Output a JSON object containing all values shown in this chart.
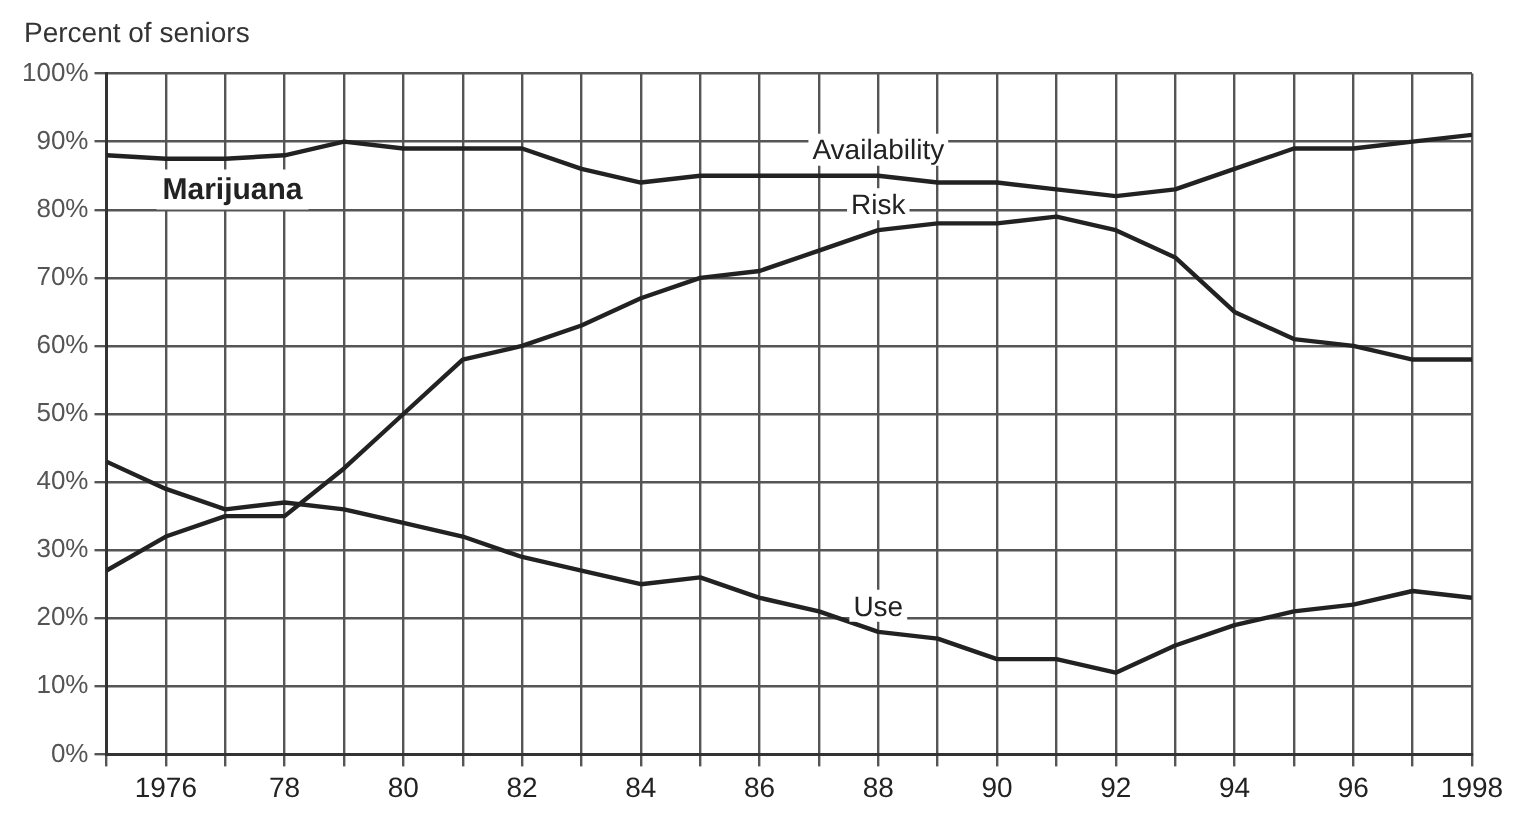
{
  "chart_data": {
    "type": "line",
    "ylabel": "Percent of seniors",
    "annotations": [
      "Marijuana"
    ],
    "x": [
      1975,
      1976,
      1977,
      1978,
      1979,
      1980,
      1981,
      1982,
      1983,
      1984,
      1985,
      1986,
      1987,
      1988,
      1989,
      1990,
      1991,
      1992,
      1993,
      1994,
      1995,
      1996,
      1997,
      1998
    ],
    "series": [
      {
        "name": "Availability",
        "color": "#222222",
        "values": [
          88,
          87.5,
          87.5,
          88,
          90,
          89,
          89,
          89,
          86,
          84,
          85,
          85,
          85,
          85,
          84,
          84,
          83,
          82,
          83,
          86,
          89,
          89,
          90,
          91
        ]
      },
      {
        "name": "Risk",
        "color": "#222222",
        "values": [
          27,
          32,
          35,
          35,
          42,
          50,
          58,
          60,
          63,
          67,
          70,
          71,
          74,
          77,
          78,
          78,
          79,
          77,
          73,
          65,
          61,
          60,
          58,
          58
        ]
      },
      {
        "name": "Use",
        "color": "#222222",
        "values": [
          43,
          39,
          36,
          37,
          36,
          34,
          32,
          29,
          27,
          25,
          26,
          23,
          21,
          18,
          17,
          14,
          14,
          12,
          16,
          19,
          21,
          22,
          24,
          23
        ]
      }
    ],
    "xlim": [
      1975,
      1998
    ],
    "xticks": [
      {
        "value": 1975,
        "label": null
      },
      {
        "value": 1976,
        "label": "1976"
      },
      {
        "value": 1977,
        "label": null
      },
      {
        "value": 1978,
        "label": "78"
      },
      {
        "value": 1979,
        "label": null
      },
      {
        "value": 1980,
        "label": "80"
      },
      {
        "value": 1981,
        "label": null
      },
      {
        "value": 1982,
        "label": "82"
      },
      {
        "value": 1983,
        "label": null
      },
      {
        "value": 1984,
        "label": "84"
      },
      {
        "value": 1985,
        "label": null
      },
      {
        "value": 1986,
        "label": "86"
      },
      {
        "value": 1987,
        "label": null
      },
      {
        "value": 1988,
        "label": "88"
      },
      {
        "value": 1989,
        "label": null
      },
      {
        "value": 1990,
        "label": "90"
      },
      {
        "value": 1991,
        "label": null
      },
      {
        "value": 1992,
        "label": "92"
      },
      {
        "value": 1993,
        "label": null
      },
      {
        "value": 1994,
        "label": "94"
      },
      {
        "value": 1995,
        "label": null
      },
      {
        "value": 1996,
        "label": "96"
      },
      {
        "value": 1997,
        "label": null
      },
      {
        "value": 1998,
        "label": "1998"
      }
    ],
    "ylim": [
      0,
      100
    ],
    "yticks": [
      {
        "value": 0,
        "label": "0%"
      },
      {
        "value": 10,
        "label": "10%"
      },
      {
        "value": 20,
        "label": "20%"
      },
      {
        "value": 30,
        "label": "30%"
      },
      {
        "value": 40,
        "label": "40%"
      },
      {
        "value": 50,
        "label": "50%"
      },
      {
        "value": 60,
        "label": "60%"
      },
      {
        "value": 70,
        "label": "70%"
      },
      {
        "value": 80,
        "label": "80%"
      },
      {
        "value": 90,
        "label": "90%"
      },
      {
        "value": 100,
        "label": "100%"
      }
    ],
    "grid": true,
    "legend": false,
    "marker": "none",
    "line_style": "solid"
  }
}
